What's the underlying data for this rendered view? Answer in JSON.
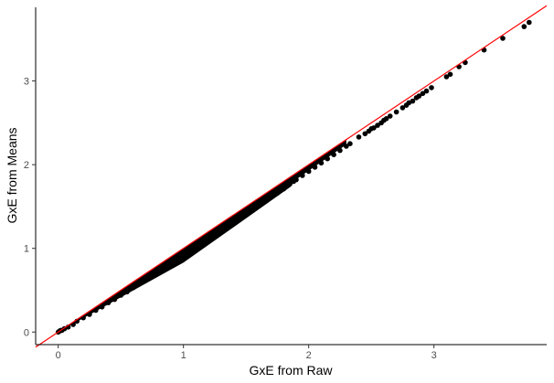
{
  "chart_data": {
    "type": "scatter",
    "title": "",
    "xlabel": "GxE from Raw",
    "ylabel": "GxE from Means",
    "xlim": [
      -0.18,
      3.9
    ],
    "ylim": [
      -0.15,
      3.88
    ],
    "x_ticks": [
      0,
      1,
      2,
      3
    ],
    "y_ticks": [
      0,
      1,
      2,
      3
    ],
    "x_tick_labels": [
      "0",
      "1",
      "2",
      "3"
    ],
    "y_tick_labels": [
      "0",
      "1",
      "2",
      "3"
    ],
    "grid": false,
    "legend": "none",
    "reference_line": {
      "label": "",
      "slope": 1,
      "intercept": 0,
      "color": "#ff0000"
    },
    "point_color": "#000000",
    "series": [
      {
        "values": [
          [
            0.0,
            0.0
          ],
          [
            0.01,
            0.01
          ],
          [
            0.02,
            0.02
          ],
          [
            0.03,
            0.02
          ],
          [
            0.05,
            0.04
          ],
          [
            0.08,
            0.06
          ],
          [
            0.12,
            0.09
          ],
          [
            0.15,
            0.13
          ],
          [
            0.2,
            0.17
          ],
          [
            0.25,
            0.21
          ],
          [
            0.3,
            0.26
          ],
          [
            0.35,
            0.3
          ],
          [
            0.4,
            0.35
          ],
          [
            0.45,
            0.39
          ],
          [
            0.5,
            0.44
          ],
          [
            0.55,
            0.48
          ],
          [
            0.6,
            0.53
          ],
          [
            0.65,
            0.58
          ],
          [
            0.7,
            0.62
          ],
          [
            0.75,
            0.67
          ],
          [
            0.8,
            0.72
          ],
          [
            0.85,
            0.77
          ],
          [
            0.9,
            0.82
          ],
          [
            0.95,
            0.86
          ],
          [
            1.0,
            0.87
          ],
          [
            1.0,
            0.95
          ],
          [
            1.05,
            0.99
          ],
          [
            1.1,
            1.04
          ],
          [
            1.15,
            1.08
          ],
          [
            1.2,
            1.13
          ],
          [
            1.25,
            1.18
          ],
          [
            1.3,
            1.22
          ],
          [
            1.35,
            1.27
          ],
          [
            1.4,
            1.32
          ],
          [
            1.45,
            1.37
          ],
          [
            1.5,
            1.42
          ],
          [
            1.55,
            1.46
          ],
          [
            1.6,
            1.51
          ],
          [
            1.65,
            1.56
          ],
          [
            1.7,
            1.61
          ],
          [
            1.75,
            1.66
          ],
          [
            1.8,
            1.71
          ],
          [
            1.85,
            1.77
          ],
          [
            1.88,
            1.8
          ],
          [
            1.9,
            1.82
          ],
          [
            1.95,
            1.87
          ],
          [
            2.0,
            1.92
          ],
          [
            2.05,
            1.97
          ],
          [
            2.1,
            2.02
          ],
          [
            2.15,
            2.07
          ],
          [
            2.2,
            2.12
          ],
          [
            2.25,
            2.17
          ],
          [
            2.3,
            2.22
          ],
          [
            2.33,
            2.25
          ],
          [
            2.4,
            2.33
          ],
          [
            2.45,
            2.37
          ],
          [
            2.48,
            2.4
          ],
          [
            2.5,
            2.43
          ],
          [
            2.52,
            2.44
          ],
          [
            2.55,
            2.47
          ],
          [
            2.58,
            2.5
          ],
          [
            2.6,
            2.53
          ],
          [
            2.62,
            2.55
          ],
          [
            2.65,
            2.58
          ],
          [
            2.7,
            2.63
          ],
          [
            2.75,
            2.68
          ],
          [
            2.78,
            2.71
          ],
          [
            2.8,
            2.74
          ],
          [
            2.83,
            2.76
          ],
          [
            2.86,
            2.8
          ],
          [
            2.88,
            2.82
          ],
          [
            2.91,
            2.85
          ],
          [
            2.94,
            2.88
          ],
          [
            2.98,
            2.92
          ],
          [
            3.1,
            3.05
          ],
          [
            3.13,
            3.08
          ],
          [
            3.2,
            3.17
          ],
          [
            3.25,
            3.22
          ],
          [
            3.4,
            3.37
          ],
          [
            3.55,
            3.51
          ],
          [
            3.72,
            3.65
          ],
          [
            3.76,
            3.7
          ]
        ]
      }
    ]
  }
}
